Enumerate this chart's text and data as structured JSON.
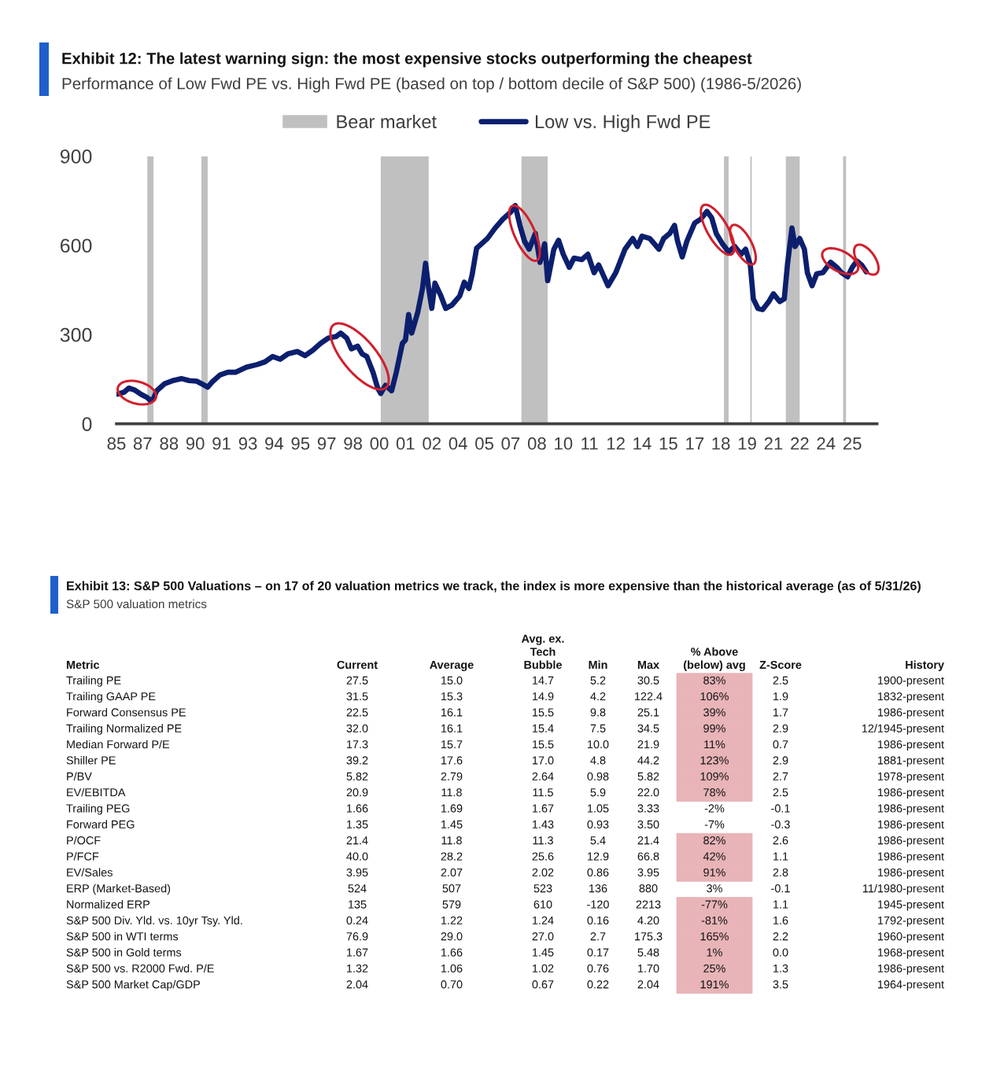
{
  "chart_data": [
    {
      "type": "line",
      "title": "Exhibit 12: The latest warning sign: the most expensive stocks outperforming the cheapest",
      "subtitle": "Performance of Low Fwd PE vs. High Fwd PE (based on top / bottom decile of S&P 500) (1986-5/2026)",
      "x": [
        "1986-01",
        "1986-05",
        "1986-08",
        "1986-12",
        "1987-04",
        "1987-08",
        "1987-10",
        "1987-12",
        "1988-02",
        "1988-07",
        "1989-01",
        "1989-06",
        "1989-11",
        "1990-04",
        "1990-08",
        "1990-11",
        "1991-02",
        "1991-07",
        "1991-12",
        "1992-05",
        "1992-12",
        "1993-07",
        "1993-12",
        "1994-05",
        "1994-10",
        "1995-03",
        "1995-09",
        "1996-02",
        "1996-07",
        "1996-12",
        "1997-05",
        "1997-10",
        "1998-01",
        "1998-05",
        "1998-08",
        "1998-12",
        "1999-03",
        "1999-06",
        "1999-10",
        "2000-01",
        "2000-03",
        "2000-06",
        "2000-10",
        "2001-01",
        "2001-05",
        "2001-07",
        "2001-09",
        "2001-11",
        "2002-03",
        "2002-06",
        "2002-08",
        "2002-10",
        "2002-12",
        "2003-02",
        "2003-06",
        "2003-09",
        "2004-01",
        "2004-06",
        "2004-09",
        "2004-12",
        "2005-02",
        "2005-05",
        "2005-12",
        "2006-05",
        "2006-10",
        "2007-03",
        "2007-06",
        "2007-09",
        "2007-12",
        "2008-03",
        "2008-07",
        "2008-10",
        "2009-01",
        "2009-03",
        "2009-07",
        "2009-10",
        "2010-01",
        "2010-05",
        "2010-08",
        "2011-01",
        "2011-05",
        "2011-09",
        "2011-12",
        "2012-03",
        "2012-06",
        "2012-11",
        "2013-05",
        "2013-10",
        "2014-01",
        "2014-04",
        "2014-09",
        "2015-03",
        "2015-06",
        "2015-10",
        "2016-01",
        "2016-03",
        "2016-06",
        "2016-09",
        "2017-02",
        "2017-06",
        "2017-10",
        "2018-01",
        "2018-04",
        "2018-08",
        "2018-12",
        "2019-04",
        "2019-08",
        "2019-11",
        "2020-02",
        "2020-04",
        "2020-07",
        "2020-10",
        "2021-02",
        "2021-05",
        "2021-09",
        "2021-12",
        "2022-02",
        "2022-05",
        "2022-07",
        "2022-10",
        "2023-01",
        "2023-03",
        "2023-06",
        "2023-09",
        "2024-01",
        "2024-06",
        "2024-10",
        "2025-01",
        "2025-05",
        "2025-08",
        "2025-11",
        "2026-02",
        "2026-05"
      ],
      "series": [
        {
          "name": "Low vs. High Fwd PE",
          "color": "#0c1f6e",
          "values": [
            100,
            106,
            120,
            113,
            99,
            88,
            78,
            85,
            111,
            134,
            146,
            152,
            145,
            143,
            132,
            123,
            141,
            164,
            173,
            173,
            190,
            199,
            208,
            226,
            217,
            235,
            243,
            229,
            247,
            270,
            288,
            293,
            305,
            288,
            252,
            261,
            235,
            226,
            173,
            120,
            102,
            129,
            111,
            173,
            270,
            282,
            367,
            305,
            376,
            455,
            540,
            455,
            388,
            473,
            429,
            388,
            399,
            429,
            476,
            455,
            500,
            590,
            623,
            658,
            688,
            711,
            734,
            667,
            614,
            587,
            640,
            543,
            605,
            481,
            587,
            617,
            570,
            526,
            557,
            552,
            570,
            508,
            534,
            499,
            464,
            508,
            587,
            623,
            596,
            631,
            623,
            587,
            623,
            640,
            667,
            614,
            561,
            614,
            675,
            688,
            714,
            693,
            640,
            605,
            578,
            596,
            570,
            587,
            534,
            420,
            388,
            384,
            411,
            437,
            411,
            420,
            534,
            658,
            596,
            623,
            587,
            508,
            464,
            504,
            508,
            543,
            526,
            508,
            494,
            526,
            547,
            534,
            511
          ]
        }
      ],
      "xlim": [
        "1985-12",
        "2026-12"
      ],
      "xticks": [
        {
          "value": "1985-12",
          "label": "85"
        },
        {
          "value": "1987-05",
          "label": "87"
        },
        {
          "value": "1988-10",
          "label": "88"
        },
        {
          "value": "1990-03",
          "label": "90"
        },
        {
          "value": "1991-08",
          "label": "91"
        },
        {
          "value": "1993-01",
          "label": "93"
        },
        {
          "value": "1994-06",
          "label": "94"
        },
        {
          "value": "1995-11",
          "label": "95"
        },
        {
          "value": "1997-04",
          "label": "97"
        },
        {
          "value": "1998-09",
          "label": "98"
        },
        {
          "value": "2000-02",
          "label": "00"
        },
        {
          "value": "2001-07",
          "label": "01"
        },
        {
          "value": "2002-12",
          "label": "02"
        },
        {
          "value": "2004-05",
          "label": "04"
        },
        {
          "value": "2005-10",
          "label": "05"
        },
        {
          "value": "2007-03",
          "label": "07"
        },
        {
          "value": "2008-08",
          "label": "08"
        },
        {
          "value": "2010-01",
          "label": "10"
        },
        {
          "value": "2011-06",
          "label": "11"
        },
        {
          "value": "2012-11",
          "label": "12"
        },
        {
          "value": "2014-04",
          "label": "14"
        },
        {
          "value": "2015-09",
          "label": "15"
        },
        {
          "value": "2017-02",
          "label": "17"
        },
        {
          "value": "2018-07",
          "label": "18"
        },
        {
          "value": "2019-12",
          "label": "19"
        },
        {
          "value": "2021-05",
          "label": "21"
        },
        {
          "value": "2022-10",
          "label": "22"
        },
        {
          "value": "2024-03",
          "label": "24"
        },
        {
          "value": "2025-08",
          "label": "25"
        }
      ],
      "ylim": [
        0,
        900
      ],
      "yticks": [
        0,
        300,
        600,
        900
      ],
      "bands": [
        {
          "axis": "x",
          "from": "1987-08",
          "to": "1987-12",
          "label": "Bear market",
          "color": "#c0c0c0"
        },
        {
          "axis": "x",
          "from": "1990-07",
          "to": "1990-11",
          "color": "#c0c0c0"
        },
        {
          "axis": "x",
          "from": "2000-03",
          "to": "2002-10",
          "color": "#c0c0c0"
        },
        {
          "axis": "x",
          "from": "2007-10",
          "to": "2009-03",
          "color": "#c0c0c0"
        },
        {
          "axis": "x",
          "from": "2018-09",
          "to": "2018-12",
          "color": "#c0c0c0"
        },
        {
          "axis": "x",
          "from": "2020-02",
          "to": "2020-03",
          "color": "#c0c0c0"
        },
        {
          "axis": "x",
          "from": "2022-01",
          "to": "2022-10",
          "color": "#c0c0c0"
        },
        {
          "axis": "x",
          "from": "2025-02",
          "to": "2025-04",
          "color": "#c0c0c0"
        }
      ],
      "legend": "top",
      "line_style": "solid"
    },
    {
      "type": "other",
      "title": "Exhibit 13: S&P 500 Valuations – on 17 of 20 valuation metrics we track, the index is more expensive than the historical average (as of 5/31/26)",
      "subtitle": "S&P 500 valuation metrics",
      "categories": [
        "Metric",
        "Current",
        "Average",
        "Avg. ex.\nTech\nBubble",
        "Min",
        "Max",
        "% Above\n(below) avg",
        "Z-Score",
        "History"
      ],
      "y_categories": [
        "Trailing PE",
        "Trailing GAAP PE",
        "Forward Consensus PE",
        "Trailing Normalized PE",
        "Median Forward P/E",
        "Shiller PE",
        "P/BV",
        "EV/EBITDA",
        "Trailing PEG",
        "Forward PEG",
        "P/OCF",
        "P/FCF",
        "EV/Sales",
        "ERP (Market-Based)",
        "Normalized ERP",
        "S&P 500 Div. Yld. vs. 10yr Tsy. Yld.",
        "S&P 500 in WTI terms",
        "S&P 500 in Gold terms",
        "S&P 500 vs. R2000 Fwd. P/E",
        "S&P 500 Market Cap/GDP"
      ],
      "cell_labels": [
        [
          "27.5",
          "15.0",
          "14.7",
          "5.2",
          "30.5",
          "83%",
          "2.5",
          "1900-present"
        ],
        [
          "31.5",
          "15.3",
          "14.9",
          "4.2",
          "122.4",
          "106%",
          "1.9",
          "1832-present"
        ],
        [
          "22.5",
          "16.1",
          "15.5",
          "9.8",
          "25.1",
          "39%",
          "1.7",
          "1986-present"
        ],
        [
          "32.0",
          "16.1",
          "15.4",
          "7.5",
          "34.5",
          "99%",
          "2.9",
          "12/1945-present"
        ],
        [
          "17.3",
          "15.7",
          "15.5",
          "10.0",
          "21.9",
          "11%",
          "0.7",
          "1986-present"
        ],
        [
          "39.2",
          "17.6",
          "17.0",
          "4.8",
          "44.2",
          "123%",
          "2.9",
          "1881-present"
        ],
        [
          "5.82",
          "2.79",
          "2.64",
          "0.98",
          "5.82",
          "109%",
          "2.7",
          "1978-present"
        ],
        [
          "20.9",
          "11.8",
          "11.5",
          "5.9",
          "22.0",
          "78%",
          "2.5",
          "1986-present"
        ],
        [
          "1.66",
          "1.69",
          "1.67",
          "1.05",
          "3.33",
          "-2%",
          "-0.1",
          "1986-present"
        ],
        [
          "1.35",
          "1.45",
          "1.43",
          "0.93",
          "3.50",
          "-7%",
          "-0.3",
          "1986-present"
        ],
        [
          "21.4",
          "11.8",
          "11.3",
          "5.4",
          "21.4",
          "82%",
          "2.6",
          "1986-present"
        ],
        [
          "40.0",
          "28.2",
          "25.6",
          "12.9",
          "66.8",
          "42%",
          "1.1",
          "1986-present"
        ],
        [
          "3.95",
          "2.07",
          "2.02",
          "0.86",
          "3.95",
          "91%",
          "2.8",
          "1986-present"
        ],
        [
          "524",
          "507",
          "523",
          "136",
          "880",
          "3%",
          "-0.1",
          "11/1980-present"
        ],
        [
          "135",
          "579",
          "610",
          "-120",
          "2213",
          "-77%",
          "1.1",
          "1945-present"
        ],
        [
          "0.24",
          "1.22",
          "1.24",
          "0.16",
          "4.20",
          "-81%",
          "1.6",
          "1792-present"
        ],
        [
          "76.9",
          "29.0",
          "27.0",
          "2.7",
          "175.3",
          "165%",
          "2.2",
          "1960-present"
        ],
        [
          "1.67",
          "1.66",
          "1.45",
          "0.17",
          "5.48",
          "1%",
          "0.0",
          "1968-present"
        ],
        [
          "1.32",
          "1.06",
          "1.02",
          "0.76",
          "1.70",
          "25%",
          "1.3",
          "1986-present"
        ],
        [
          "2.04",
          "0.70",
          "0.67",
          "0.22",
          "2.04",
          "191%",
          "3.5",
          "1964-present"
        ]
      ],
      "colors": [
        "#e8b4b8",
        "#e8b4b8",
        "#e8b4b8",
        "#e8b4b8",
        "#e8b4b8",
        "#e8b4b8",
        "#e8b4b8",
        "#e8b4b8",
        null,
        null,
        "#e8b4b8",
        "#e8b4b8",
        "#e8b4b8",
        null,
        "#e8b4b8",
        "#e8b4b8",
        "#e8b4b8",
        "#e8b4b8",
        "#e8b4b8",
        "#e8b4b8"
      ]
    }
  ]
}
